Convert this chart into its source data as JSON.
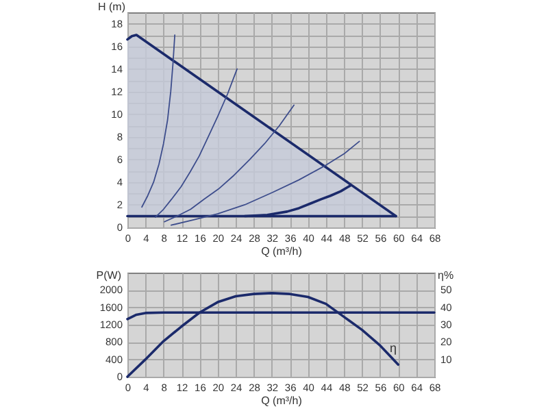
{
  "chart_data": [
    {
      "type": "line",
      "xlabel": "Q (m³/h)",
      "ylabel": "H (m)",
      "xlim": [
        0,
        68
      ],
      "xticks": [
        0,
        4,
        8,
        12,
        16,
        20,
        24,
        28,
        32,
        36,
        40,
        44,
        48,
        52,
        56,
        60,
        64,
        68
      ],
      "ylim": [
        0,
        19
      ],
      "yticks": [
        0,
        {
          "value": 1,
          "label": null
        },
        2,
        {
          "value": 3,
          "label": null
        },
        4,
        {
          "value": 5,
          "label": null
        },
        6,
        {
          "value": 7,
          "label": null
        },
        8,
        {
          "value": 9,
          "label": null
        },
        10,
        {
          "value": 11,
          "label": null
        },
        12,
        {
          "value": 13,
          "label": null
        },
        14,
        {
          "value": 15,
          "label": null
        },
        16,
        {
          "value": 17,
          "label": null
        },
        18
      ],
      "grid": true,
      "series": [
        {
          "color": "#1b2a6b",
          "x": [
            0,
            1,
            2,
            59.5
          ],
          "values": [
            16.6,
            16.9,
            17,
            1
          ],
          "lower": [
            1,
            1,
            1,
            1
          ],
          "upper": [
            16.6,
            16.9,
            17,
            1
          ]
        },
        {
          "color": "#1b2a6b",
          "x": [
            0,
            59.5
          ],
          "values": [
            1,
            1
          ]
        },
        {
          "color": "#1b2a6b",
          "x": [
            26,
            31,
            35.4,
            38,
            40.5,
            43,
            45,
            47.3,
            49.4
          ],
          "values": [
            1,
            1.1,
            1.4,
            1.7,
            2.1,
            2.5,
            2.8,
            3.2,
            3.7
          ]
        },
        {
          "color": "#3d4d8c",
          "x": [
            3.2,
            4.5,
            5.8,
            7,
            8,
            8.9,
            9.6,
            10.1,
            10.5
          ],
          "values": [
            1.8,
            2.8,
            4,
            5.6,
            7.4,
            9.5,
            12,
            14.5,
            17
          ]
        },
        {
          "color": "#3d4d8c",
          "x": [
            6.2,
            8,
            9.8,
            11.9,
            13.9,
            15.9,
            17.9,
            20,
            22.2,
            24.3
          ],
          "values": [
            0.9,
            1.6,
            2.5,
            3.6,
            4.9,
            6.3,
            8,
            9.8,
            11.8,
            14
          ]
        },
        {
          "color": "#3d4d8c",
          "x": [
            8.2,
            11,
            14,
            17,
            20.2,
            23.6,
            27.1,
            30.4,
            33.7,
            36.9
          ],
          "values": [
            0.5,
            1,
            1.6,
            2.5,
            3.4,
            4.6,
            6,
            7.4,
            9,
            10.8
          ]
        },
        {
          "color": "#3d4d8c",
          "x": [
            9.7,
            15,
            20,
            26,
            32.2,
            38,
            44,
            48,
            51.4
          ],
          "values": [
            0.2,
            0.7,
            1.2,
            2,
            3.1,
            4.2,
            5.5,
            6.5,
            7.6
          ]
        }
      ]
    },
    {
      "type": "line",
      "xlabel": "Q (m³/h)",
      "ylabel": "P(W)",
      "y2label": "η%",
      "xlim": [
        0,
        68
      ],
      "xticks": [
        0,
        4,
        8,
        12,
        16,
        20,
        24,
        28,
        32,
        36,
        40,
        44,
        48,
        52,
        56,
        60,
        64,
        68
      ],
      "ylim": [
        0,
        2400
      ],
      "yticks": [
        0,
        400,
        800,
        1200,
        1600,
        2000
      ],
      "y2lim": [
        0,
        60
      ],
      "y2ticks": [
        10,
        20,
        30,
        40,
        50
      ],
      "grid": true,
      "series": [
        {
          "color": "#1b2a6b",
          "x": [
            0,
            2,
            4,
            8,
            68
          ],
          "values": [
            1330,
            1430,
            1470,
            1480,
            1480
          ]
        },
        {
          "name": "η",
          "axis": "y2",
          "color": "#1b2a6b",
          "x": [
            0,
            4,
            8,
            12,
            16,
            20,
            24,
            28,
            32,
            36,
            40,
            44,
            48,
            52,
            56,
            60
          ],
          "values": [
            0,
            10,
            20.5,
            29,
            37,
            43,
            46.4,
            47.7,
            48.2,
            47.7,
            46,
            42,
            34.5,
            27,
            18,
            7
          ]
        }
      ]
    }
  ]
}
